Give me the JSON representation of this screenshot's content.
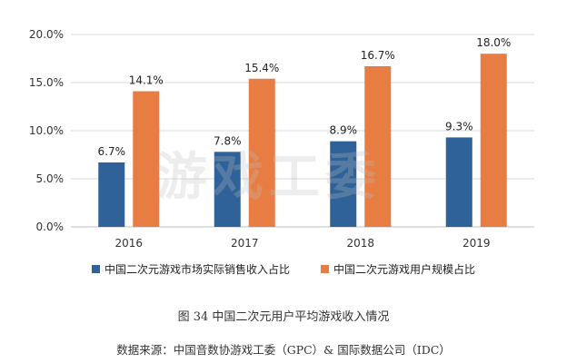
{
  "chart_data": {
    "type": "bar",
    "categories": [
      "2016",
      "2017",
      "2018",
      "2019"
    ],
    "series": [
      {
        "name": "中国二次元游戏市场实际销售收入占比",
        "values": [
          6.7,
          7.8,
          8.9,
          9.3
        ],
        "labels": [
          "6.7%",
          "7.8%",
          "8.9%",
          "9.3%"
        ],
        "color": "#2e6299"
      },
      {
        "name": "中国二次元游戏用户规模占比",
        "values": [
          14.1,
          15.4,
          16.7,
          18.0
        ],
        "labels": [
          "14.1%",
          "15.4%",
          "16.7%",
          "18.0%"
        ],
        "color": "#e87d43"
      }
    ],
    "ylim": [
      0,
      20
    ],
    "yticks": [
      0,
      5,
      10,
      15,
      20
    ],
    "ytick_labels": [
      "0.0%",
      "5.0%",
      "10.0%",
      "15.0%",
      "20.0%"
    ],
    "grid": true,
    "legend_position": "bottom",
    "title": "",
    "xlabel": "",
    "ylabel": ""
  },
  "watermark": "游戏工委",
  "figure_caption": "图 34 中国二次元用户平均游戏收入情况",
  "source_note": "数据来源：中国音数协游戏工委（GPC）& 国际数据公司（IDC）"
}
